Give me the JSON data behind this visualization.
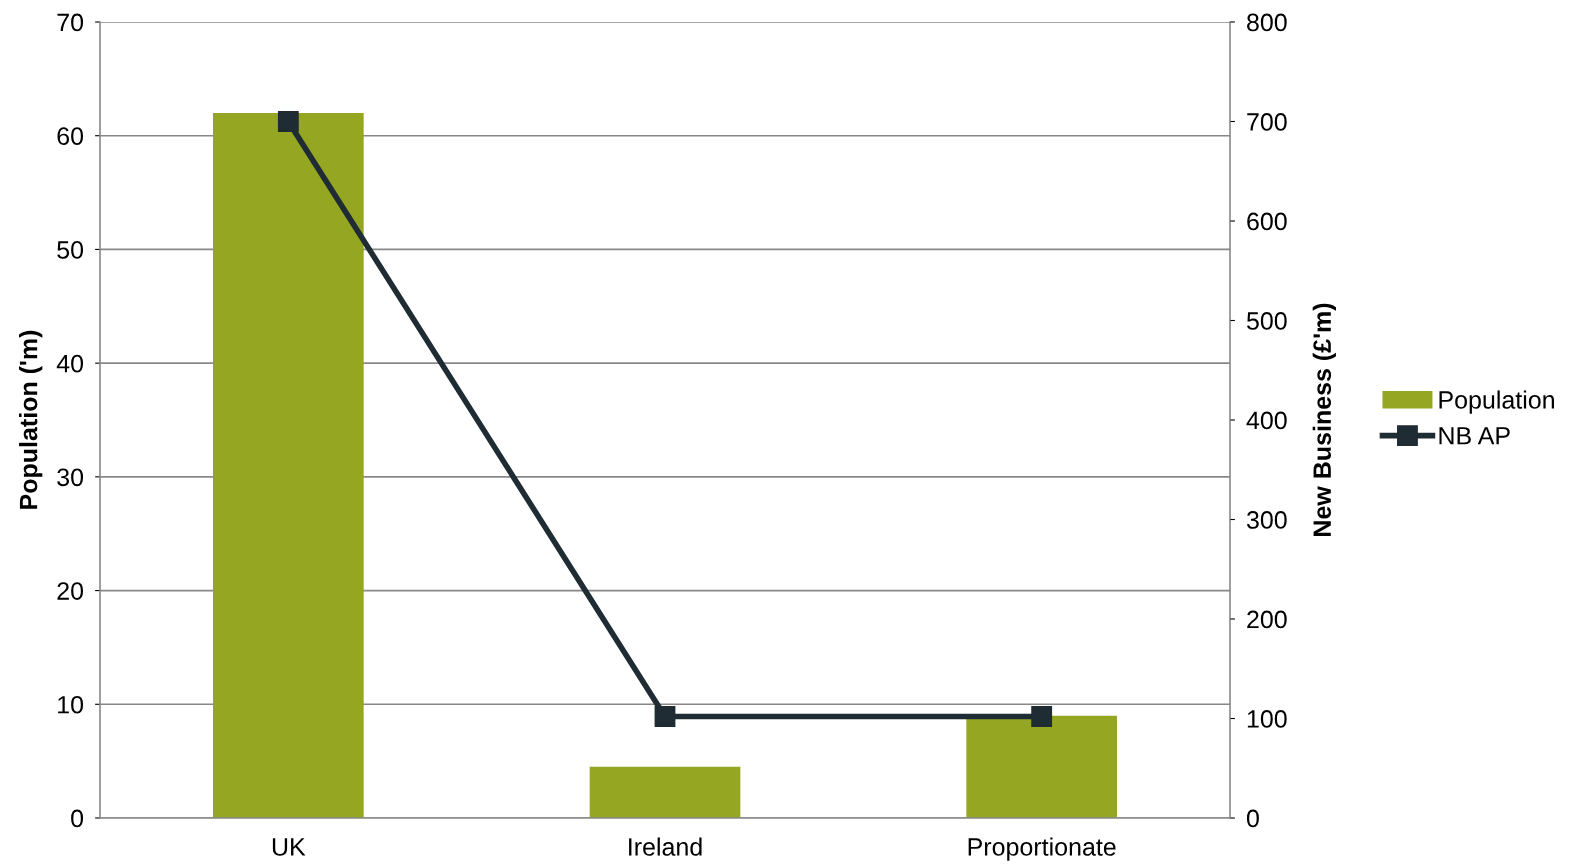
{
  "chart_data": {
    "type": "bar",
    "categories": [
      "UK",
      "Ireland",
      "Proportionate"
    ],
    "ylabel": "Population ('m)",
    "y2label": "New Business (£'m)",
    "series": [
      {
        "name": "Population",
        "color": "#95a623",
        "values": [
          62,
          4.5,
          9
        ]
      },
      {
        "name": "NB AP",
        "type": "line",
        "axis": "y2",
        "color": "#1f2c33",
        "marker": "square",
        "values": [
          700,
          102,
          102
        ]
      }
    ],
    "ylim": [
      0,
      70
    ],
    "yticks": [
      0,
      10,
      20,
      30,
      40,
      50,
      60,
      70
    ],
    "y2lim": [
      0,
      800
    ],
    "y2ticks": [
      0,
      100,
      200,
      300,
      400,
      500,
      600,
      700,
      800
    ],
    "grid": "y",
    "legend": "right"
  }
}
